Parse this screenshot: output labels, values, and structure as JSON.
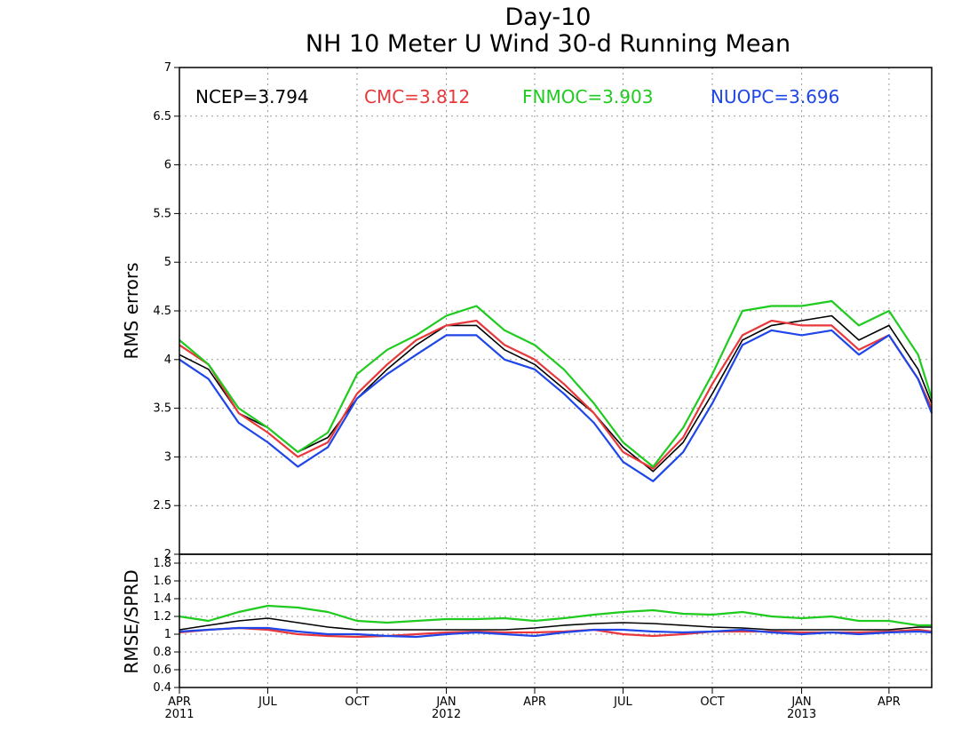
{
  "chart_data": [
    {
      "type": "line",
      "title": "Day-10",
      "subtitle": "NH 10 Meter U Wind 30-d Running Mean",
      "xlabel": "",
      "ylabel": "RMS errors",
      "ylim": [
        2,
        7
      ],
      "yticks": [
        "2",
        "2.5",
        "3",
        "3.5",
        "4",
        "4.5",
        "5",
        "5.5",
        "6",
        "6.5",
        "7"
      ],
      "grid": true,
      "legend_position": "top",
      "legend": [
        {
          "name": "NCEP",
          "value": "3.794",
          "color": "#000000"
        },
        {
          "name": "CMC",
          "value": "3.812",
          "color": "#e8383b"
        },
        {
          "name": "FNMOC",
          "value": "3.903",
          "color": "#1ecb1e"
        },
        {
          "name": "NUOPC",
          "value": "3.696",
          "color": "#1e46e8"
        }
      ],
      "x": [
        "2011-04-01",
        "2011-05-01",
        "2011-06-01",
        "2011-07-01",
        "2011-08-01",
        "2011-09-01",
        "2011-10-01",
        "2011-11-01",
        "2011-12-01",
        "2012-01-01",
        "2012-02-01",
        "2012-03-01",
        "2012-04-01",
        "2012-05-01",
        "2012-06-01",
        "2012-07-01",
        "2012-08-01",
        "2012-09-01",
        "2012-10-01",
        "2012-11-01",
        "2012-12-01",
        "2013-01-01",
        "2013-02-01",
        "2013-03-01",
        "2013-04-01",
        "2013-05-01",
        "2013-05-15"
      ],
      "series": [
        {
          "name": "NCEP",
          "color": "#000000",
          "values": [
            4.05,
            3.9,
            3.45,
            3.3,
            3.05,
            3.2,
            3.6,
            3.9,
            4.15,
            4.35,
            4.35,
            4.1,
            3.95,
            3.7,
            3.45,
            3.1,
            2.85,
            3.15,
            3.65,
            4.2,
            4.35,
            4.4,
            4.45,
            4.2,
            4.35,
            3.9,
            3.55
          ]
        },
        {
          "name": "CMC",
          "color": "#e8383b",
          "values": [
            4.15,
            3.95,
            3.45,
            3.25,
            3.0,
            3.15,
            3.65,
            3.95,
            4.2,
            4.35,
            4.4,
            4.15,
            4.0,
            3.75,
            3.45,
            3.05,
            2.88,
            3.2,
            3.75,
            4.25,
            4.4,
            4.35,
            4.35,
            4.1,
            4.25,
            3.8,
            3.5
          ]
        },
        {
          "name": "FNMOC",
          "color": "#1ecb1e",
          "values": [
            4.2,
            3.95,
            3.5,
            3.3,
            3.05,
            3.25,
            3.85,
            4.1,
            4.25,
            4.45,
            4.55,
            4.3,
            4.15,
            3.9,
            3.55,
            3.15,
            2.9,
            3.3,
            3.85,
            4.5,
            4.55,
            4.55,
            4.6,
            4.35,
            4.5,
            4.05,
            3.6
          ]
        },
        {
          "name": "NUOPC",
          "color": "#1e46e8",
          "values": [
            4.0,
            3.8,
            3.35,
            3.15,
            2.9,
            3.1,
            3.6,
            3.85,
            4.05,
            4.25,
            4.25,
            4.0,
            3.9,
            3.65,
            3.35,
            2.95,
            2.75,
            3.05,
            3.55,
            4.15,
            4.3,
            4.25,
            4.3,
            4.05,
            4.25,
            3.8,
            3.45
          ]
        }
      ]
    },
    {
      "type": "line",
      "title": "",
      "xlabel": "",
      "ylabel": "RMSE/SPRD",
      "ylim": [
        0.4,
        1.9
      ],
      "yticks": [
        "0.4",
        "0.6",
        "0.8",
        "1",
        "1.2",
        "1.4",
        "1.6",
        "1.8"
      ],
      "xticks": [
        {
          "date": "2011-04-01",
          "label": "APR",
          "year": "2011"
        },
        {
          "date": "2011-07-01",
          "label": "JUL",
          "year": ""
        },
        {
          "date": "2011-10-01",
          "label": "OCT",
          "year": ""
        },
        {
          "date": "2012-01-01",
          "label": "JAN",
          "year": "2012"
        },
        {
          "date": "2012-04-01",
          "label": "APR",
          "year": ""
        },
        {
          "date": "2012-07-01",
          "label": "JUL",
          "year": ""
        },
        {
          "date": "2012-10-01",
          "label": "OCT",
          "year": ""
        },
        {
          "date": "2013-01-01",
          "label": "JAN",
          "year": "2013"
        },
        {
          "date": "2013-04-01",
          "label": "APR",
          "year": ""
        }
      ],
      "grid": true,
      "x": [
        "2011-04-01",
        "2011-05-01",
        "2011-06-01",
        "2011-07-01",
        "2011-08-01",
        "2011-09-01",
        "2011-10-01",
        "2011-11-01",
        "2011-12-01",
        "2012-01-01",
        "2012-02-01",
        "2012-03-01",
        "2012-04-01",
        "2012-05-01",
        "2012-06-01",
        "2012-07-01",
        "2012-08-01",
        "2012-09-01",
        "2012-10-01",
        "2012-11-01",
        "2012-12-01",
        "2013-01-01",
        "2013-02-01",
        "2013-03-01",
        "2013-04-01",
        "2013-05-01",
        "2013-05-15"
      ],
      "series": [
        {
          "name": "NCEP",
          "color": "#000000",
          "values": [
            1.05,
            1.1,
            1.15,
            1.18,
            1.13,
            1.08,
            1.05,
            1.05,
            1.05,
            1.05,
            1.05,
            1.05,
            1.07,
            1.1,
            1.12,
            1.13,
            1.12,
            1.1,
            1.08,
            1.07,
            1.05,
            1.05,
            1.05,
            1.05,
            1.05,
            1.08,
            1.08
          ]
        },
        {
          "name": "CMC",
          "color": "#e8383b",
          "values": [
            1.02,
            1.05,
            1.07,
            1.05,
            1.0,
            0.98,
            0.97,
            0.98,
            1.0,
            1.02,
            1.03,
            1.02,
            1.02,
            1.03,
            1.05,
            1.0,
            0.98,
            1.0,
            1.03,
            1.03,
            1.03,
            1.02,
            1.02,
            1.02,
            1.03,
            1.05,
            1.03
          ]
        },
        {
          "name": "FNMOC",
          "color": "#1ecb1e",
          "values": [
            1.2,
            1.15,
            1.25,
            1.32,
            1.3,
            1.25,
            1.15,
            1.13,
            1.15,
            1.17,
            1.17,
            1.18,
            1.15,
            1.18,
            1.22,
            1.25,
            1.27,
            1.23,
            1.22,
            1.25,
            1.2,
            1.18,
            1.2,
            1.15,
            1.15,
            1.1,
            1.1
          ]
        },
        {
          "name": "NUOPC",
          "color": "#1e46e8",
          "values": [
            1.03,
            1.05,
            1.07,
            1.07,
            1.03,
            1.0,
            1.0,
            0.98,
            0.97,
            1.0,
            1.02,
            1.0,
            0.98,
            1.02,
            1.05,
            1.05,
            1.03,
            1.02,
            1.03,
            1.05,
            1.02,
            1.0,
            1.02,
            1.0,
            1.02,
            1.03,
            1.02
          ]
        }
      ]
    }
  ]
}
